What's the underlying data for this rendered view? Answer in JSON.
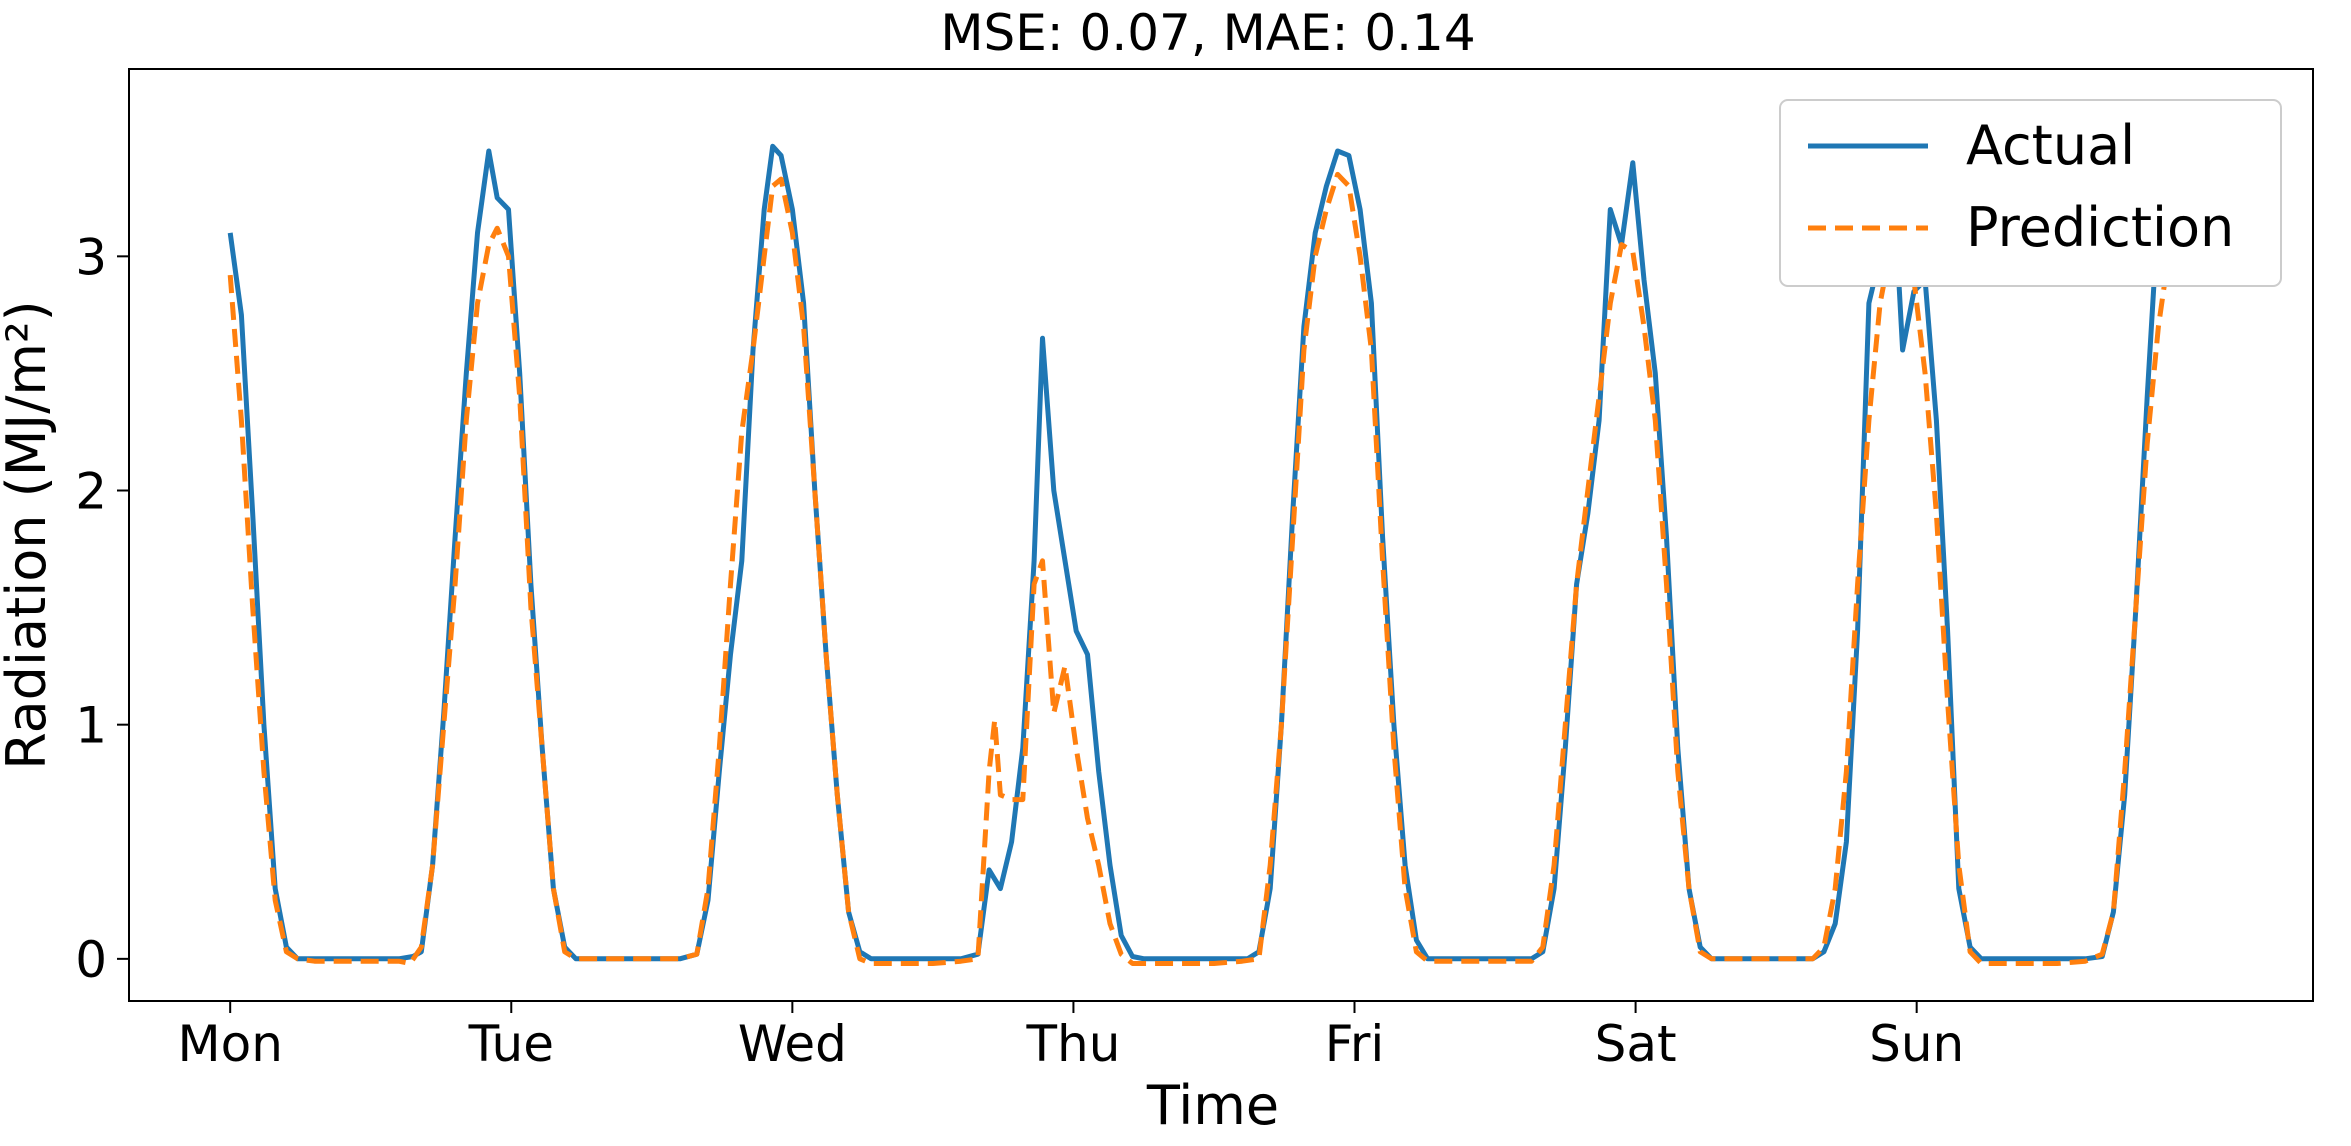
{
  "chart_data": {
    "type": "line",
    "title": "MSE: 0.07, MAE: 0.14",
    "xlabel": "Time",
    "ylabel": "Radiation (MJ/m²)",
    "ylim": [
      -0.18,
      3.8
    ],
    "xlim": [
      -0.36,
      7.41
    ],
    "grid": false,
    "legend_position": "top-right",
    "x_ticks": [
      {
        "x": 0,
        "label": "Mon"
      },
      {
        "x": 1,
        "label": "Tue"
      },
      {
        "x": 2,
        "label": "Wed"
      },
      {
        "x": 3,
        "label": "Thu"
      },
      {
        "x": 4,
        "label": "Fri"
      },
      {
        "x": 5,
        "label": "Sat"
      },
      {
        "x": 6,
        "label": "Sun"
      }
    ],
    "y_ticks": [
      {
        "y": 0,
        "label": "0"
      },
      {
        "y": 1,
        "label": "1"
      },
      {
        "y": 2,
        "label": "2"
      },
      {
        "y": 3,
        "label": "3"
      }
    ],
    "series": [
      {
        "name": "Actual",
        "color": "#1f77b4",
        "style": "solid",
        "points": [
          [
            0.0,
            3.1
          ],
          [
            0.04,
            2.75
          ],
          [
            0.08,
            1.9
          ],
          [
            0.12,
            1.0
          ],
          [
            0.16,
            0.3
          ],
          [
            0.2,
            0.05
          ],
          [
            0.24,
            0.0
          ],
          [
            0.3,
            0.0
          ],
          [
            0.4,
            0.0
          ],
          [
            0.5,
            0.0
          ],
          [
            0.6,
            0.0
          ],
          [
            0.65,
            0.01
          ],
          [
            0.68,
            0.03
          ],
          [
            0.72,
            0.4
          ],
          [
            0.76,
            1.05
          ],
          [
            0.8,
            1.8
          ],
          [
            0.84,
            2.5
          ],
          [
            0.88,
            3.1
          ],
          [
            0.92,
            3.45
          ],
          [
            0.95,
            3.25
          ],
          [
            0.99,
            3.2
          ],
          [
            1.03,
            2.5
          ],
          [
            1.07,
            1.6
          ],
          [
            1.11,
            0.9
          ],
          [
            1.15,
            0.3
          ],
          [
            1.19,
            0.05
          ],
          [
            1.23,
            0.0
          ],
          [
            1.3,
            0.0
          ],
          [
            1.4,
            0.0
          ],
          [
            1.5,
            0.0
          ],
          [
            1.6,
            0.0
          ],
          [
            1.66,
            0.02
          ],
          [
            1.7,
            0.25
          ],
          [
            1.74,
            0.8
          ],
          [
            1.78,
            1.3
          ],
          [
            1.82,
            1.7
          ],
          [
            1.86,
            2.6
          ],
          [
            1.9,
            3.2
          ],
          [
            1.93,
            3.47
          ],
          [
            1.96,
            3.43
          ],
          [
            2.0,
            3.2
          ],
          [
            2.04,
            2.8
          ],
          [
            2.08,
            2.0
          ],
          [
            2.12,
            1.3
          ],
          [
            2.16,
            0.7
          ],
          [
            2.2,
            0.2
          ],
          [
            2.24,
            0.03
          ],
          [
            2.28,
            0.0
          ],
          [
            2.4,
            0.0
          ],
          [
            2.5,
            0.0
          ],
          [
            2.6,
            0.0
          ],
          [
            2.66,
            0.02
          ],
          [
            2.7,
            0.38
          ],
          [
            2.74,
            0.3
          ],
          [
            2.78,
            0.5
          ],
          [
            2.82,
            0.9
          ],
          [
            2.86,
            1.7
          ],
          [
            2.89,
            2.65
          ],
          [
            2.93,
            2.0
          ],
          [
            2.97,
            1.7
          ],
          [
            3.01,
            1.4
          ],
          [
            3.05,
            1.3
          ],
          [
            3.09,
            0.8
          ],
          [
            3.13,
            0.4
          ],
          [
            3.17,
            0.1
          ],
          [
            3.21,
            0.01
          ],
          [
            3.25,
            0.0
          ],
          [
            3.35,
            0.0
          ],
          [
            3.45,
            0.0
          ],
          [
            3.55,
            0.0
          ],
          [
            3.62,
            0.0
          ],
          [
            3.66,
            0.03
          ],
          [
            3.7,
            0.3
          ],
          [
            3.74,
            1.0
          ],
          [
            3.78,
            1.9
          ],
          [
            3.82,
            2.7
          ],
          [
            3.86,
            3.1
          ],
          [
            3.9,
            3.3
          ],
          [
            3.94,
            3.45
          ],
          [
            3.98,
            3.43
          ],
          [
            4.02,
            3.2
          ],
          [
            4.06,
            2.8
          ],
          [
            4.1,
            1.8
          ],
          [
            4.14,
            1.0
          ],
          [
            4.18,
            0.4
          ],
          [
            4.22,
            0.08
          ],
          [
            4.26,
            0.0
          ],
          [
            4.35,
            0.0
          ],
          [
            4.45,
            0.0
          ],
          [
            4.55,
            0.0
          ],
          [
            4.63,
            0.0
          ],
          [
            4.67,
            0.03
          ],
          [
            4.71,
            0.3
          ],
          [
            4.75,
            0.9
          ],
          [
            4.79,
            1.6
          ],
          [
            4.83,
            1.9
          ],
          [
            4.87,
            2.3
          ],
          [
            4.91,
            3.2
          ],
          [
            4.95,
            3.05
          ],
          [
            4.99,
            3.4
          ],
          [
            5.03,
            2.9
          ],
          [
            5.07,
            2.5
          ],
          [
            5.11,
            1.8
          ],
          [
            5.15,
            0.9
          ],
          [
            5.19,
            0.3
          ],
          [
            5.23,
            0.05
          ],
          [
            5.27,
            0.0
          ],
          [
            5.35,
            0.0
          ],
          [
            5.45,
            0.0
          ],
          [
            5.55,
            0.0
          ],
          [
            5.63,
            0.0
          ],
          [
            5.67,
            0.03
          ],
          [
            5.71,
            0.15
          ],
          [
            5.75,
            0.5
          ],
          [
            5.79,
            1.4
          ],
          [
            5.83,
            2.8
          ],
          [
            5.87,
            3.0
          ],
          [
            5.91,
            3.48
          ],
          [
            5.95,
            2.6
          ],
          [
            5.99,
            2.85
          ],
          [
            6.03,
            2.9
          ],
          [
            6.07,
            2.3
          ],
          [
            6.11,
            1.4
          ],
          [
            6.15,
            0.3
          ],
          [
            6.19,
            0.05
          ],
          [
            6.23,
            0.0
          ],
          [
            6.3,
            0.0
          ],
          [
            6.4,
            0.0
          ],
          [
            6.5,
            0.0
          ],
          [
            6.6,
            0.0
          ],
          [
            6.66,
            0.01
          ],
          [
            6.7,
            0.2
          ],
          [
            6.74,
            0.7
          ],
          [
            6.78,
            1.5
          ],
          [
            6.82,
            2.4
          ],
          [
            6.86,
            3.2
          ],
          [
            6.89,
            3.62
          ],
          [
            6.94,
            3.62
          ]
        ]
      },
      {
        "name": "Prediction",
        "color": "#ff7f0e",
        "style": "dashed",
        "points": [
          [
            0.0,
            2.92
          ],
          [
            0.04,
            2.3
          ],
          [
            0.08,
            1.5
          ],
          [
            0.12,
            0.8
          ],
          [
            0.16,
            0.25
          ],
          [
            0.2,
            0.03
          ],
          [
            0.24,
            0.0
          ],
          [
            0.3,
            -0.01
          ],
          [
            0.4,
            -0.01
          ],
          [
            0.5,
            -0.01
          ],
          [
            0.6,
            -0.01
          ],
          [
            0.64,
            -0.02
          ],
          [
            0.68,
            0.05
          ],
          [
            0.72,
            0.4
          ],
          [
            0.76,
            1.0
          ],
          [
            0.8,
            1.6
          ],
          [
            0.84,
            2.3
          ],
          [
            0.88,
            2.8
          ],
          [
            0.92,
            3.05
          ],
          [
            0.95,
            3.12
          ],
          [
            0.99,
            3.0
          ],
          [
            1.03,
            2.4
          ],
          [
            1.07,
            1.5
          ],
          [
            1.11,
            0.9
          ],
          [
            1.15,
            0.3
          ],
          [
            1.19,
            0.03
          ],
          [
            1.23,
            0.0
          ],
          [
            1.3,
            0.0
          ],
          [
            1.4,
            0.0
          ],
          [
            1.5,
            0.0
          ],
          [
            1.6,
            0.0
          ],
          [
            1.66,
            0.02
          ],
          [
            1.7,
            0.3
          ],
          [
            1.74,
            0.9
          ],
          [
            1.78,
            1.6
          ],
          [
            1.82,
            2.25
          ],
          [
            1.86,
            2.6
          ],
          [
            1.9,
            3.0
          ],
          [
            1.93,
            3.3
          ],
          [
            1.96,
            3.33
          ],
          [
            2.0,
            3.1
          ],
          [
            2.04,
            2.7
          ],
          [
            2.08,
            2.0
          ],
          [
            2.12,
            1.3
          ],
          [
            2.16,
            0.7
          ],
          [
            2.2,
            0.2
          ],
          [
            2.24,
            0.0
          ],
          [
            2.28,
            -0.02
          ],
          [
            2.4,
            -0.02
          ],
          [
            2.5,
            -0.02
          ],
          [
            2.6,
            -0.01
          ],
          [
            2.66,
            0.0
          ],
          [
            2.7,
            0.8
          ],
          [
            2.72,
            1.02
          ],
          [
            2.74,
            0.7
          ],
          [
            2.78,
            0.68
          ],
          [
            2.82,
            0.68
          ],
          [
            2.86,
            1.6
          ],
          [
            2.89,
            1.7
          ],
          [
            2.93,
            1.05
          ],
          [
            2.97,
            1.25
          ],
          [
            3.01,
            0.9
          ],
          [
            3.05,
            0.6
          ],
          [
            3.09,
            0.4
          ],
          [
            3.13,
            0.15
          ],
          [
            3.17,
            0.02
          ],
          [
            3.21,
            -0.02
          ],
          [
            3.3,
            -0.02
          ],
          [
            3.4,
            -0.02
          ],
          [
            3.5,
            -0.02
          ],
          [
            3.6,
            -0.01
          ],
          [
            3.66,
            0.0
          ],
          [
            3.7,
            0.4
          ],
          [
            3.74,
            1.0
          ],
          [
            3.78,
            1.8
          ],
          [
            3.82,
            2.6
          ],
          [
            3.86,
            3.0
          ],
          [
            3.9,
            3.2
          ],
          [
            3.94,
            3.35
          ],
          [
            3.98,
            3.3
          ],
          [
            4.02,
            3.0
          ],
          [
            4.06,
            2.6
          ],
          [
            4.1,
            1.7
          ],
          [
            4.14,
            0.9
          ],
          [
            4.18,
            0.3
          ],
          [
            4.22,
            0.03
          ],
          [
            4.26,
            -0.01
          ],
          [
            4.35,
            -0.01
          ],
          [
            4.45,
            -0.01
          ],
          [
            4.55,
            -0.01
          ],
          [
            4.63,
            -0.01
          ],
          [
            4.67,
            0.05
          ],
          [
            4.71,
            0.4
          ],
          [
            4.75,
            1.0
          ],
          [
            4.79,
            1.6
          ],
          [
            4.83,
            2.0
          ],
          [
            4.87,
            2.4
          ],
          [
            4.91,
            2.8
          ],
          [
            4.95,
            3.05
          ],
          [
            4.99,
            3.02
          ],
          [
            5.03,
            2.7
          ],
          [
            5.07,
            2.3
          ],
          [
            5.11,
            1.6
          ],
          [
            5.15,
            0.8
          ],
          [
            5.19,
            0.3
          ],
          [
            5.23,
            0.03
          ],
          [
            5.27,
            0.0
          ],
          [
            5.35,
            0.0
          ],
          [
            5.45,
            0.0
          ],
          [
            5.55,
            0.0
          ],
          [
            5.63,
            0.0
          ],
          [
            5.67,
            0.05
          ],
          [
            5.71,
            0.3
          ],
          [
            5.75,
            0.8
          ],
          [
            5.79,
            1.6
          ],
          [
            5.83,
            2.3
          ],
          [
            5.87,
            2.8
          ],
          [
            5.91,
            3.05
          ],
          [
            5.95,
            3.08
          ],
          [
            5.99,
            2.9
          ],
          [
            6.03,
            2.5
          ],
          [
            6.07,
            1.9
          ],
          [
            6.11,
            1.1
          ],
          [
            6.15,
            0.4
          ],
          [
            6.19,
            0.03
          ],
          [
            6.23,
            -0.02
          ],
          [
            6.3,
            -0.02
          ],
          [
            6.4,
            -0.02
          ],
          [
            6.5,
            -0.02
          ],
          [
            6.6,
            -0.01
          ],
          [
            6.66,
            0.02
          ],
          [
            6.7,
            0.2
          ],
          [
            6.74,
            0.8
          ],
          [
            6.78,
            1.5
          ],
          [
            6.82,
            2.2
          ],
          [
            6.86,
            2.7
          ],
          [
            6.89,
            2.95
          ],
          [
            6.94,
            3.3
          ]
        ]
      }
    ]
  }
}
